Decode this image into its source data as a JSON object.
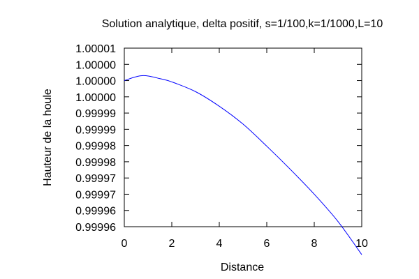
{
  "chart_data": {
    "type": "line",
    "title": "Solution analytique, delta positif, s=1/100,k=1/1000,L=10",
    "xlabel": "Distance",
    "ylabel": "Hauteur de la houle",
    "xlim": [
      0,
      10
    ],
    "ylim": [
      0.999955,
      1.00001
    ],
    "xticks": [
      0,
      2,
      4,
      6,
      8,
      10
    ],
    "xtick_labels": [
      "0",
      "2",
      "4",
      "6",
      "8",
      "10"
    ],
    "yticks": [
      0.999955,
      0.99996,
      0.999965,
      0.99997,
      0.999975,
      0.99998,
      0.999985,
      0.99999,
      0.999995,
      1.0,
      1.000005,
      1.00001
    ],
    "ytick_labels": [
      "0.99996",
      "0.99996",
      "0.99997",
      "0.99997",
      "0.99998",
      "0.99998",
      "0.99999",
      "0.99999",
      "1.00000",
      "1.00000",
      "1.00000",
      "1.00001"
    ],
    "grid": false,
    "legend": "none",
    "series": [
      {
        "color": "#0000ff",
        "x": [
          0,
          0.5,
          0.9,
          1.5,
          2,
          3,
          4,
          5,
          6,
          7,
          8,
          9,
          10
        ],
        "values": [
          1.0,
          1.0000012,
          1.0000015,
          1.0000006,
          0.9999996,
          0.9999966,
          0.9999921,
          0.9999866,
          0.9999798,
          0.9999726,
          0.999965,
          0.9999566,
          0.9999464
        ]
      }
    ]
  }
}
